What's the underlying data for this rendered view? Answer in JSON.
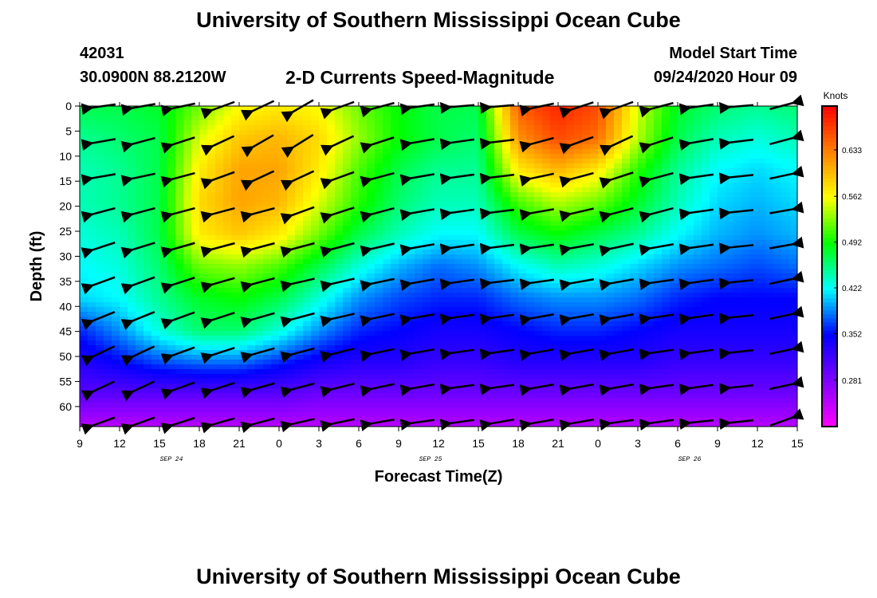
{
  "header": {
    "title_top": "University of Southern Mississippi Ocean Cube",
    "station_id": "42031",
    "station_coords": "30.0900N 88.2120W",
    "plot_title": "2-D Currents Speed-Magnitude",
    "model_start_label": "Model Start Time",
    "model_start_value": "09/24/2020 Hour 09",
    "title_bottom": "University of Southern Mississippi Ocean Cube"
  },
  "chart_data": {
    "type": "heatmap",
    "xlabel": "Forecast Time(Z)",
    "ylabel": "Depth (ft)",
    "colorbar_label": "Knots",
    "x_tick_labels": [
      "9",
      "12",
      "15",
      "18",
      "21",
      "0",
      "3",
      "6",
      "9",
      "12",
      "15",
      "18",
      "21",
      "0",
      "3",
      "6",
      "9",
      "12",
      "15"
    ],
    "date_labels": [
      {
        "label": "SEP 24",
        "tick_index": 2.3
      },
      {
        "label": "SEP 25",
        "tick_index": 8.8
      },
      {
        "label": "SEP 26",
        "tick_index": 15.3
      }
    ],
    "y_ticks": [
      0,
      5,
      10,
      15,
      20,
      25,
      30,
      35,
      40,
      45,
      50,
      55,
      60
    ],
    "ylim": [
      0,
      64
    ],
    "colorbar_ticks": [
      0.281,
      0.352,
      0.422,
      0.492,
      0.562,
      0.633
    ],
    "colorbar_range": [
      0.21,
      0.7
    ],
    "colormap": [
      "#ff00ff",
      "#8000ff",
      "#0000ff",
      "#00ffff",
      "#00ff00",
      "#ffff00",
      "#ff8000",
      "#ff0000"
    ],
    "speed_knots": [
      [
        0.47,
        0.47,
        0.48,
        0.52,
        0.56,
        0.57,
        0.56,
        0.52,
        0.49,
        0.47,
        0.47,
        0.65,
        0.68,
        0.66,
        0.55,
        0.48,
        0.46,
        0.45,
        0.46
      ],
      [
        0.45,
        0.46,
        0.47,
        0.55,
        0.59,
        0.6,
        0.58,
        0.53,
        0.49,
        0.47,
        0.46,
        0.62,
        0.66,
        0.64,
        0.54,
        0.47,
        0.44,
        0.43,
        0.44
      ],
      [
        0.44,
        0.45,
        0.47,
        0.57,
        0.61,
        0.61,
        0.57,
        0.51,
        0.47,
        0.45,
        0.45,
        0.57,
        0.6,
        0.57,
        0.5,
        0.45,
        0.42,
        0.41,
        0.42
      ],
      [
        0.44,
        0.45,
        0.47,
        0.58,
        0.61,
        0.6,
        0.55,
        0.5,
        0.46,
        0.44,
        0.44,
        0.51,
        0.54,
        0.52,
        0.48,
        0.44,
        0.41,
        0.4,
        0.41
      ],
      [
        0.43,
        0.44,
        0.47,
        0.57,
        0.59,
        0.57,
        0.52,
        0.47,
        0.44,
        0.42,
        0.42,
        0.47,
        0.49,
        0.47,
        0.45,
        0.42,
        0.4,
        0.39,
        0.4
      ],
      [
        0.42,
        0.43,
        0.46,
        0.52,
        0.53,
        0.51,
        0.47,
        0.43,
        0.4,
        0.38,
        0.39,
        0.42,
        0.44,
        0.43,
        0.41,
        0.39,
        0.38,
        0.37,
        0.38
      ],
      [
        0.41,
        0.42,
        0.45,
        0.48,
        0.49,
        0.47,
        0.43,
        0.39,
        0.37,
        0.36,
        0.36,
        0.38,
        0.39,
        0.39,
        0.38,
        0.36,
        0.35,
        0.35,
        0.35
      ],
      [
        0.36,
        0.39,
        0.43,
        0.46,
        0.46,
        0.43,
        0.39,
        0.36,
        0.35,
        0.34,
        0.34,
        0.35,
        0.36,
        0.36,
        0.35,
        0.34,
        0.34,
        0.34,
        0.34
      ],
      [
        0.33,
        0.35,
        0.37,
        0.38,
        0.38,
        0.36,
        0.34,
        0.33,
        0.33,
        0.32,
        0.32,
        0.33,
        0.33,
        0.33,
        0.33,
        0.32,
        0.32,
        0.32,
        0.32
      ],
      [
        0.3,
        0.3,
        0.3,
        0.3,
        0.3,
        0.3,
        0.29,
        0.29,
        0.29,
        0.29,
        0.29,
        0.29,
        0.29,
        0.29,
        0.29,
        0.29,
        0.29,
        0.29,
        0.29
      ],
      [
        0.25,
        0.25,
        0.25,
        0.25,
        0.25,
        0.25,
        0.25,
        0.25,
        0.25,
        0.25,
        0.25,
        0.25,
        0.25,
        0.25,
        0.25,
        0.25,
        0.25,
        0.25,
        0.25
      ]
    ],
    "arrows": {
      "columns": 18,
      "rows": 10,
      "length_knots_scale": 1.0,
      "angles_deg": [
        [
          188,
          190,
          192,
          200,
          205,
          210,
          200,
          195,
          188,
          185,
          185,
          192,
          198,
          200,
          195,
          188,
          185,
          15
        ],
        [
          190,
          195,
          198,
          205,
          210,
          212,
          205,
          198,
          190,
          188,
          187,
          195,
          200,
          205,
          198,
          190,
          187,
          15
        ],
        [
          190,
          192,
          195,
          200,
          205,
          205,
          200,
          195,
          190,
          188,
          187,
          192,
          195,
          198,
          195,
          188,
          186,
          12
        ],
        [
          195,
          195,
          195,
          195,
          195,
          200,
          198,
          195,
          190,
          188,
          187,
          190,
          193,
          195,
          195,
          188,
          186,
          10
        ],
        [
          198,
          197,
          196,
          195,
          195,
          195,
          195,
          193,
          190,
          188,
          187,
          188,
          190,
          192,
          190,
          188,
          186,
          10
        ],
        [
          200,
          200,
          198,
          196,
          195,
          193,
          193,
          192,
          190,
          188,
          187,
          188,
          190,
          190,
          188,
          188,
          186,
          12
        ],
        [
          202,
          202,
          200,
          198,
          196,
          195,
          193,
          192,
          190,
          188,
          188,
          190,
          190,
          190,
          188,
          188,
          186,
          12
        ],
        [
          205,
          205,
          200,
          198,
          196,
          195,
          194,
          192,
          190,
          188,
          188,
          190,
          190,
          190,
          188,
          188,
          186,
          12
        ],
        [
          205,
          205,
          200,
          198,
          196,
          195,
          194,
          192,
          190,
          188,
          188,
          190,
          190,
          190,
          188,
          188,
          186,
          12
        ],
        [
          200,
          200,
          198,
          196,
          195,
          193,
          192,
          190,
          188,
          188,
          190,
          190,
          190,
          188,
          188,
          186,
          186,
          20
        ]
      ]
    }
  }
}
